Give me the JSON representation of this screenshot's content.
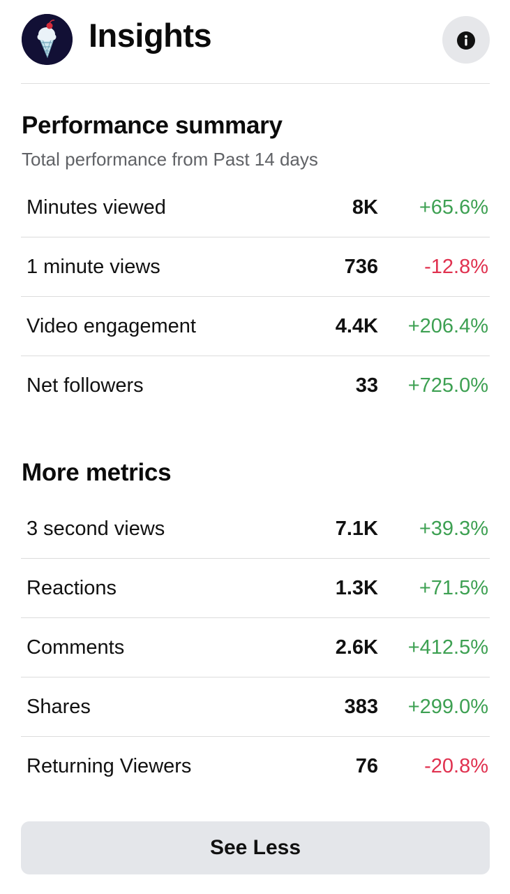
{
  "header": {
    "title": "Insights",
    "avatar_icon": "ice-cream-cone-icon",
    "info_icon": "info-icon"
  },
  "performance_summary": {
    "title": "Performance summary",
    "subtitle": "Total performance from Past 14 days",
    "rows": [
      {
        "label": "Minutes viewed",
        "value": "8K",
        "change": "+65.6%",
        "trend": "up"
      },
      {
        "label": "1 minute views",
        "value": "736",
        "change": "-12.8%",
        "trend": "down"
      },
      {
        "label": "Video engagement",
        "value": "4.4K",
        "change": "+206.4%",
        "trend": "up"
      },
      {
        "label": "Net followers",
        "value": "33",
        "change": "+725.0%",
        "trend": "up"
      }
    ]
  },
  "more_metrics": {
    "title": "More metrics",
    "rows": [
      {
        "label": "3 second views",
        "value": "7.1K",
        "change": "+39.3%",
        "trend": "up"
      },
      {
        "label": "Reactions",
        "value": "1.3K",
        "change": "+71.5%",
        "trend": "up"
      },
      {
        "label": "Comments",
        "value": "2.6K",
        "change": "+412.5%",
        "trend": "up"
      },
      {
        "label": "Shares",
        "value": "383",
        "change": "+299.0%",
        "trend": "up"
      },
      {
        "label": "Returning Viewers",
        "value": "76",
        "change": "-20.8%",
        "trend": "down"
      }
    ]
  },
  "actions": {
    "see_less_label": "See Less"
  },
  "colors": {
    "positive": "#3da052",
    "negative": "#e0314f",
    "avatar_bg": "#121035",
    "button_bg": "#e4e6ea"
  }
}
